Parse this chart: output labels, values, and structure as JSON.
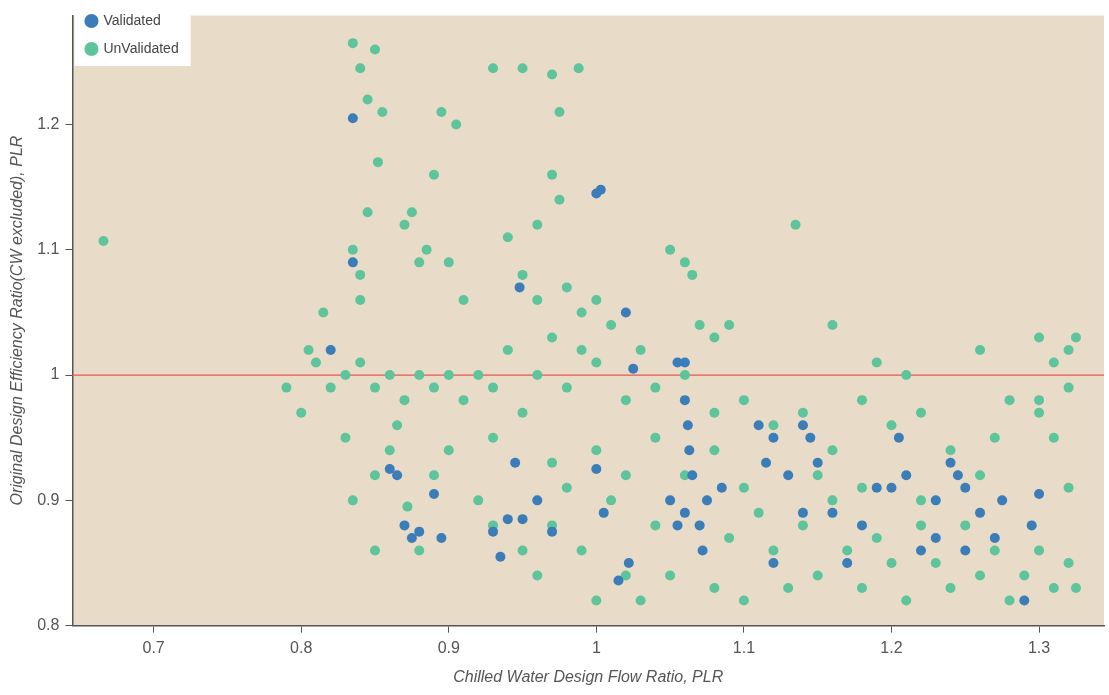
{
  "chart_data": {
    "type": "scatter",
    "xlabel": "Chilled Water Design Flow Ratio, PLR",
    "ylabel": "Original Design Efficiency Ratio(CW excluded), PLR",
    "xlim": [
      0.645,
      1.344
    ],
    "xticks": [
      0.7,
      0.8,
      0.9,
      1,
      1.1,
      1.2,
      1.3
    ],
    "ylim": [
      0.8,
      1.287
    ],
    "yticks": [
      0.8,
      0.9,
      1,
      1.1,
      1.2
    ],
    "grid": false,
    "legend": "top left",
    "marker": "circle",
    "ref_lines": [
      {
        "axis": "y",
        "value": 1,
        "color": "#e8574f"
      }
    ],
    "series": [
      {
        "name": "Validated",
        "color": "#3a7db8",
        "x": [
          0.82,
          0.835,
          0.835,
          0.86,
          0.865,
          0.87,
          0.875,
          0.88,
          0.89,
          0.895,
          0.93,
          0.935,
          0.94,
          0.945,
          0.948,
          0.95,
          0.96,
          0.97,
          1.0,
          1.003,
          1.0,
          1.005,
          1.015,
          1.02,
          1.022,
          1.025,
          1.055,
          1.06,
          1.06,
          1.062,
          1.063,
          1.065,
          1.05,
          1.055,
          1.06,
          1.07,
          1.072,
          1.075,
          1.085,
          1.11,
          1.12,
          1.115,
          1.12,
          1.13,
          1.14,
          1.145,
          1.15,
          1.14,
          1.16,
          1.17,
          1.18,
          1.19,
          1.2,
          1.21,
          1.205,
          1.22,
          1.23,
          1.24,
          1.245,
          1.25,
          1.26,
          1.27,
          1.275,
          1.29,
          1.295,
          1.3,
          1.25,
          1.23
        ],
        "values": [
          1.02,
          1.205,
          1.09,
          0.925,
          0.92,
          0.88,
          0.87,
          0.875,
          0.905,
          0.87,
          0.875,
          0.855,
          0.885,
          0.93,
          1.07,
          0.885,
          0.9,
          0.875,
          1.145,
          1.148,
          0.925,
          0.89,
          0.836,
          1.05,
          0.85,
          1.005,
          1.01,
          1.01,
          0.98,
          0.96,
          0.94,
          0.92,
          0.9,
          0.88,
          0.89,
          0.88,
          0.86,
          0.9,
          0.91,
          0.96,
          0.95,
          0.93,
          0.85,
          0.92,
          0.96,
          0.95,
          0.93,
          0.89,
          0.89,
          0.85,
          0.88,
          0.91,
          0.91,
          0.92,
          0.95,
          0.86,
          0.9,
          0.93,
          0.92,
          0.91,
          0.89,
          0.87,
          0.9,
          0.82,
          0.88,
          0.905,
          0.86,
          0.87
        ]
      },
      {
        "name": "UnValidated",
        "color": "#5ec49c",
        "x": [
          0.666,
          0.79,
          0.8,
          0.805,
          0.81,
          0.815,
          0.82,
          0.83,
          0.835,
          0.84,
          0.845,
          0.85,
          0.852,
          0.855,
          0.835,
          0.84,
          0.845,
          0.84,
          0.835,
          0.85,
          0.86,
          0.865,
          0.87,
          0.875,
          0.88,
          0.885,
          0.89,
          0.895,
          0.905,
          0.9,
          0.91,
          0.93,
          0.95,
          0.97,
          0.975,
          0.988,
          0.97,
          0.975,
          0.96,
          0.94,
          0.95,
          0.96,
          0.98,
          0.99,
          1.0,
          1.01,
          1.05,
          1.06,
          1.065,
          1.07,
          1.08,
          1.09,
          1.135,
          1.16,
          1.19,
          1.21,
          1.26,
          1.3,
          1.31,
          1.32,
          1.325,
          0.83,
          0.84,
          0.85,
          0.86,
          0.87,
          0.88,
          0.89,
          0.9,
          0.91,
          0.92,
          0.93,
          0.94,
          0.95,
          0.96,
          0.97,
          0.98,
          0.99,
          1.0,
          1.02,
          1.03,
          1.04,
          1.06,
          1.08,
          1.1,
          1.12,
          1.14,
          1.16,
          1.18,
          1.2,
          1.22,
          1.24,
          1.28,
          1.3,
          1.32,
          0.85,
          0.872,
          0.88,
          0.89,
          0.92,
          0.93,
          0.95,
          0.96,
          0.97,
          0.98,
          0.99,
          1.0,
          1.01,
          1.02,
          1.03,
          1.04,
          1.05,
          1.06,
          1.08,
          1.09,
          1.1,
          1.11,
          1.12,
          1.13,
          1.14,
          1.15,
          1.16,
          1.17,
          1.18,
          1.19,
          1.2,
          1.21,
          1.22,
          1.23,
          1.24,
          1.25,
          1.26,
          1.27,
          1.28,
          1.29,
          1.3,
          1.31,
          1.32,
          1.325,
          1.32,
          1.31,
          1.3,
          1.27,
          0.9,
          0.93,
          0.97,
          1.0,
          1.02,
          1.04,
          1.08,
          1.1,
          1.15,
          1.18,
          1.22,
          1.26
        ],
        "values": [
          1.107,
          0.99,
          0.97,
          1.02,
          1.01,
          1.05,
          0.99,
          0.95,
          1.265,
          1.245,
          1.22,
          1.26,
          1.17,
          1.21,
          1.1,
          1.08,
          1.13,
          1.06,
          0.9,
          0.86,
          0.94,
          0.96,
          1.12,
          1.13,
          1.09,
          1.1,
          1.16,
          1.21,
          1.2,
          1.09,
          1.06,
          1.245,
          1.245,
          1.24,
          1.21,
          1.245,
          1.16,
          1.14,
          1.12,
          1.11,
          1.08,
          1.06,
          1.07,
          1.05,
          1.06,
          1.04,
          1.1,
          1.09,
          1.08,
          1.04,
          1.03,
          1.04,
          1.12,
          1.04,
          1.01,
          1,
          1.02,
          1.03,
          1.01,
          1.02,
          1.03,
          1,
          1.01,
          0.99,
          1,
          0.98,
          1,
          0.99,
          1,
          0.98,
          1,
          0.99,
          1.02,
          0.97,
          1,
          1.03,
          0.99,
          1.02,
          1.01,
          0.98,
          1.02,
          0.99,
          1,
          0.97,
          0.98,
          0.96,
          0.97,
          0.94,
          0.98,
          0.96,
          0.97,
          0.94,
          0.98,
          0.97,
          0.99,
          0.92,
          0.895,
          0.86,
          0.92,
          0.9,
          0.88,
          0.86,
          0.84,
          0.88,
          0.91,
          0.86,
          0.82,
          0.9,
          0.84,
          0.82,
          0.88,
          0.84,
          0.92,
          0.83,
          0.87,
          0.82,
          0.89,
          0.86,
          0.83,
          0.88,
          0.84,
          0.9,
          0.86,
          0.83,
          0.87,
          0.85,
          0.82,
          0.88,
          0.85,
          0.83,
          0.88,
          0.84,
          0.86,
          0.82,
          0.84,
          0.86,
          0.83,
          0.85,
          0.83,
          0.91,
          0.95,
          0.98,
          0.95,
          0.94,
          0.95,
          0.93,
          0.94,
          0.92,
          0.95,
          0.94,
          0.91,
          0.92,
          0.91,
          0.9,
          0.92
        ]
      }
    ]
  }
}
